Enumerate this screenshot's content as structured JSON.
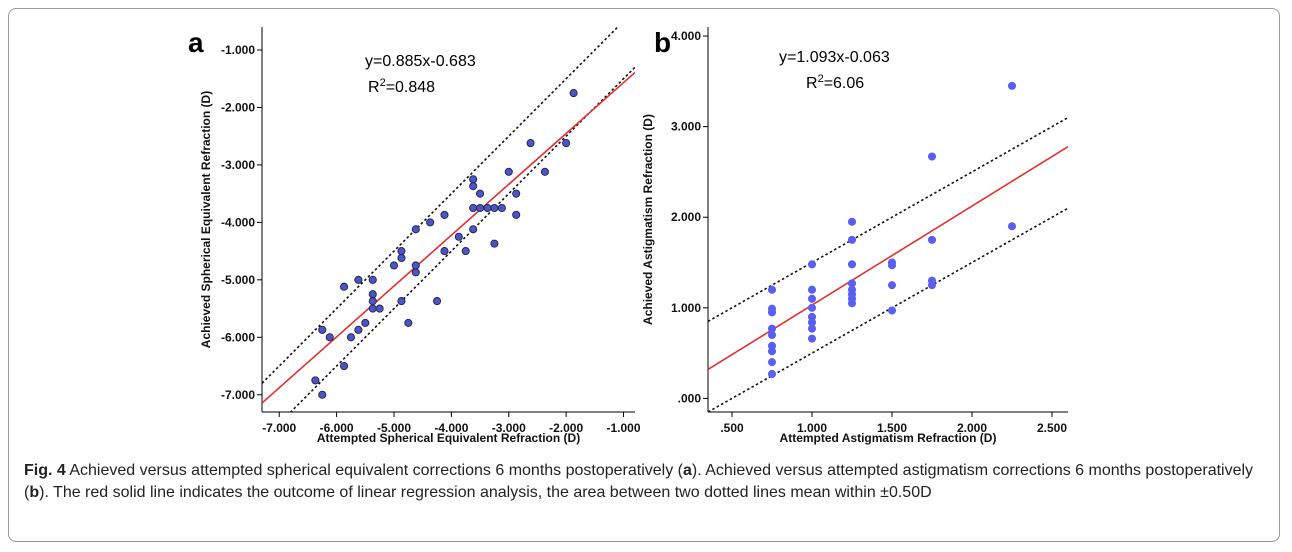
{
  "chart_data": [
    {
      "type": "scatter",
      "panel_label": "a",
      "equation": "y=0.885x-0.683",
      "r2_prefix": "R",
      "r2_sup": "2",
      "r2_value": "=0.848",
      "xlabel": "Attempted Spherical Equivalent Refraction (D)",
      "ylabel": "Achieved Spherical Equivalent Refraction (D)",
      "xlim": [
        -7.3,
        -0.8
      ],
      "ylim": [
        -7.3,
        -0.6
      ],
      "xticks": [
        -7.0,
        -6.0,
        -5.0,
        -4.0,
        -3.0,
        -2.0,
        -1.0
      ],
      "xtick_labels": [
        "-7.000",
        "-6.000",
        "-5.000",
        "-4.000",
        "-3.000",
        "-2.000",
        "-1.000"
      ],
      "yticks": [
        -7.0,
        -6.0,
        -5.0,
        -4.0,
        -3.0,
        -2.0,
        -1.0
      ],
      "ytick_labels": [
        "-7.000",
        "-6.000",
        "-5.000",
        "-4.000",
        "-3.000",
        "-2.000",
        "-1.000"
      ],
      "point_color": "#4a55c8",
      "point_stroke": "#222244",
      "fit_color": "#e03030",
      "fit": {
        "slope": 0.885,
        "intercept": -0.683
      },
      "band": [
        {
          "slope": 1.0,
          "intercept": 0.5
        },
        {
          "slope": 1.0,
          "intercept": -0.5
        }
      ],
      "points": [
        {
          "x": -6.37,
          "y": -6.75
        },
        {
          "x": -6.25,
          "y": -7.0
        },
        {
          "x": -6.25,
          "y": -5.87
        },
        {
          "x": -6.12,
          "y": -6.0
        },
        {
          "x": -5.87,
          "y": -5.12
        },
        {
          "x": -5.87,
          "y": -6.5
        },
        {
          "x": -5.75,
          "y": -6.0
        },
        {
          "x": -5.62,
          "y": -5.0
        },
        {
          "x": -5.62,
          "y": -5.87
        },
        {
          "x": -5.5,
          "y": -5.75
        },
        {
          "x": -5.37,
          "y": -5.0
        },
        {
          "x": -5.37,
          "y": -5.25
        },
        {
          "x": -5.37,
          "y": -5.37
        },
        {
          "x": -5.37,
          "y": -5.5
        },
        {
          "x": -5.25,
          "y": -5.5
        },
        {
          "x": -5.0,
          "y": -4.75
        },
        {
          "x": -4.87,
          "y": -4.5
        },
        {
          "x": -4.87,
          "y": -4.62
        },
        {
          "x": -4.87,
          "y": -5.37
        },
        {
          "x": -4.75,
          "y": -5.75
        },
        {
          "x": -4.62,
          "y": -4.75
        },
        {
          "x": -4.62,
          "y": -4.87
        },
        {
          "x": -4.62,
          "y": -4.12
        },
        {
          "x": -4.37,
          "y": -4.0
        },
        {
          "x": -4.25,
          "y": -5.37
        },
        {
          "x": -4.12,
          "y": -3.87
        },
        {
          "x": -4.12,
          "y": -4.5
        },
        {
          "x": -3.87,
          "y": -4.25
        },
        {
          "x": -3.75,
          "y": -4.5
        },
        {
          "x": -3.62,
          "y": -3.25
        },
        {
          "x": -3.62,
          "y": -3.37
        },
        {
          "x": -3.62,
          "y": -3.75
        },
        {
          "x": -3.62,
          "y": -4.12
        },
        {
          "x": -3.5,
          "y": -3.5
        },
        {
          "x": -3.5,
          "y": -3.75
        },
        {
          "x": -3.37,
          "y": -3.75
        },
        {
          "x": -3.25,
          "y": -3.75
        },
        {
          "x": -3.25,
          "y": -4.37
        },
        {
          "x": -3.0,
          "y": -3.12
        },
        {
          "x": -2.87,
          "y": -3.5
        },
        {
          "x": -2.87,
          "y": -3.87
        },
        {
          "x": -2.62,
          "y": -2.62
        },
        {
          "x": -2.37,
          "y": -3.12
        },
        {
          "x": -2.0,
          "y": -2.62
        },
        {
          "x": -1.87,
          "y": -1.75
        },
        {
          "x": -3.12,
          "y": -3.75
        }
      ]
    },
    {
      "type": "scatter",
      "panel_label": "b",
      "equation": "y=1.093x-0.063",
      "r2_prefix": "R",
      "r2_sup": "2",
      "r2_value": "=6.06",
      "xlabel": "Attempted Astigmatism Refraction (D)",
      "ylabel": "Achieved Astigmatism Refraction (D)",
      "xlim": [
        0.35,
        2.6
      ],
      "ylim": [
        -0.15,
        4.1
      ],
      "xticks": [
        0.5,
        1.0,
        1.5,
        2.0,
        2.5
      ],
      "xtick_labels": [
        ".500",
        "1.000",
        "1.500",
        "2.000",
        "2.500"
      ],
      "yticks": [
        0.0,
        1.0,
        2.0,
        3.0,
        4.0
      ],
      "ytick_labels": [
        ".000",
        "1.000",
        "2.000",
        "3.000",
        "4.000"
      ],
      "point_color": "#5b5ff0",
      "point_stroke": "#5b5ff0",
      "fit_color": "#e03030",
      "fit": {
        "slope": 1.093,
        "intercept": -0.063
      },
      "band": [
        {
          "slope": 1.0,
          "intercept": 0.5
        },
        {
          "slope": 1.0,
          "intercept": -0.5
        }
      ],
      "points": [
        {
          "x": 0.75,
          "y": 0.27
        },
        {
          "x": 0.75,
          "y": 0.4
        },
        {
          "x": 0.75,
          "y": 0.52
        },
        {
          "x": 0.75,
          "y": 0.58
        },
        {
          "x": 0.75,
          "y": 0.7
        },
        {
          "x": 0.75,
          "y": 0.77
        },
        {
          "x": 0.75,
          "y": 0.95
        },
        {
          "x": 0.75,
          "y": 0.99
        },
        {
          "x": 0.75,
          "y": 1.2
        },
        {
          "x": 1.0,
          "y": 0.66
        },
        {
          "x": 1.0,
          "y": 0.77
        },
        {
          "x": 1.0,
          "y": 0.84
        },
        {
          "x": 1.0,
          "y": 0.9
        },
        {
          "x": 1.0,
          "y": 1.0
        },
        {
          "x": 1.0,
          "y": 1.1
        },
        {
          "x": 1.0,
          "y": 1.2
        },
        {
          "x": 1.0,
          "y": 1.48
        },
        {
          "x": 1.25,
          "y": 1.05
        },
        {
          "x": 1.25,
          "y": 1.1
        },
        {
          "x": 1.25,
          "y": 1.15
        },
        {
          "x": 1.25,
          "y": 1.2
        },
        {
          "x": 1.25,
          "y": 1.27
        },
        {
          "x": 1.25,
          "y": 1.48
        },
        {
          "x": 1.25,
          "y": 1.75
        },
        {
          "x": 1.25,
          "y": 1.95
        },
        {
          "x": 1.5,
          "y": 0.97
        },
        {
          "x": 1.5,
          "y": 1.25
        },
        {
          "x": 1.5,
          "y": 1.47
        },
        {
          "x": 1.5,
          "y": 1.5
        },
        {
          "x": 1.75,
          "y": 1.25
        },
        {
          "x": 1.75,
          "y": 1.3
        },
        {
          "x": 1.75,
          "y": 1.75
        },
        {
          "x": 1.75,
          "y": 2.67
        },
        {
          "x": 2.25,
          "y": 1.9
        },
        {
          "x": 2.25,
          "y": 3.45
        }
      ]
    }
  ],
  "caption": {
    "fig_label": "Fig. 4",
    "text_1": " Achieved versus attempted spherical equivalent corrections 6 months postoperatively (",
    "ref_a": "a",
    "text_2": "). Achieved versus attempted astigmatism corrections 6 months postoperatively (",
    "ref_b": "b",
    "text_3": "). The red solid line indicates the outcome of linear regression analysis, the area between two dotted lines mean within ±0.50D"
  }
}
